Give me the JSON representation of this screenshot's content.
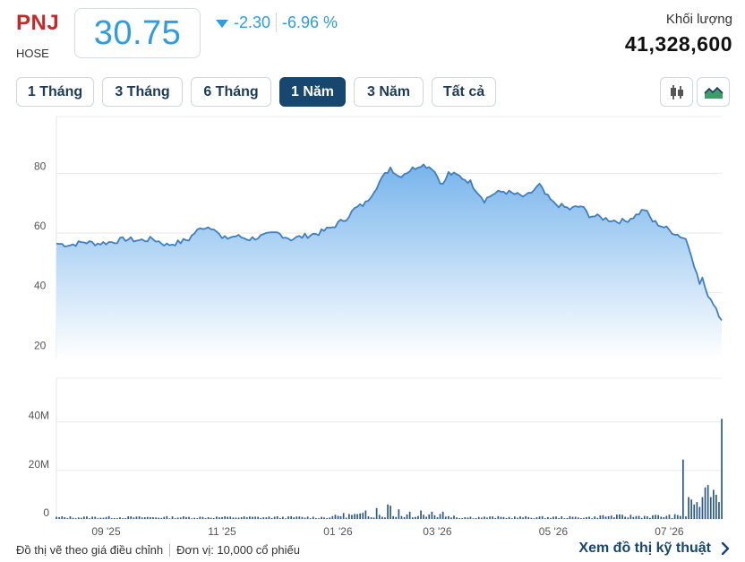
{
  "header": {
    "ticker": "PNJ",
    "exchange": "HOSE",
    "price": "30.75",
    "change": "-2.30",
    "change_pct": "-6.96 %",
    "volume_label": "Khối lượng",
    "volume_value": "41,328,600"
  },
  "ranges": [
    "1 Tháng",
    "3 Tháng",
    "6 Tháng",
    "1 Năm",
    "3 Năm",
    "Tất cả"
  ],
  "active_range": "1 Năm",
  "colors": {
    "accent": "#2f9be0",
    "line": "#3f7fbf",
    "area_top": "#7fb8ea",
    "ticker": "#c62828",
    "active_button": "#17466f",
    "volume_bar": "#2b5a86"
  },
  "icons": {
    "candlestick": "candlestick-icon",
    "mountain": "mountain-chart-icon",
    "chevron": "chevron-right-icon"
  },
  "footer": {
    "note": "Đồ thị vẽ theo giá điều chỉnh",
    "unit": "Đơn vị: 10,000 cổ phiếu",
    "link": "Xem đồ thị kỹ thuật"
  },
  "chart_data": [
    {
      "type": "area",
      "x_ticks": [
        "09 '25",
        "11 '25",
        "01 '26",
        "03 '26",
        "05 '26",
        "07 '26"
      ],
      "x_tick_index": [
        18,
        60,
        102,
        138,
        180,
        222
      ],
      "ylim": [
        18,
        99
      ],
      "y_ticks": [
        20,
        40,
        60,
        80
      ],
      "grid": true,
      "keyframes": [
        [
          0,
          56.5
        ],
        [
          5,
          56
        ],
        [
          10,
          57
        ],
        [
          15,
          56.5
        ],
        [
          20,
          57
        ],
        [
          25,
          58
        ],
        [
          30,
          57.5
        ],
        [
          35,
          58
        ],
        [
          40,
          56
        ],
        [
          45,
          57
        ],
        [
          48,
          58
        ],
        [
          50,
          60
        ],
        [
          53,
          62
        ],
        [
          57,
          62
        ],
        [
          60,
          58
        ],
        [
          65,
          59
        ],
        [
          70,
          58
        ],
        [
          75,
          59
        ],
        [
          80,
          60
        ],
        [
          85,
          58
        ],
        [
          90,
          59
        ],
        [
          95,
          60
        ],
        [
          100,
          62
        ],
        [
          105,
          65
        ],
        [
          108,
          68
        ],
        [
          112,
          70
        ],
        [
          117,
          77
        ],
        [
          121,
          82
        ],
        [
          124,
          79
        ],
        [
          128,
          81
        ],
        [
          132,
          83
        ],
        [
          136,
          82
        ],
        [
          140,
          76
        ],
        [
          142,
          80
        ],
        [
          146,
          79
        ],
        [
          150,
          77
        ],
        [
          155,
          71
        ],
        [
          158,
          73
        ],
        [
          162,
          74
        ],
        [
          166,
          73
        ],
        [
          170,
          72
        ],
        [
          175,
          76
        ],
        [
          177,
          73
        ],
        [
          180,
          70
        ],
        [
          183,
          69
        ],
        [
          186,
          68
        ],
        [
          190,
          69
        ],
        [
          193,
          66
        ],
        [
          198,
          65
        ],
        [
          203,
          64
        ],
        [
          206,
          64
        ],
        [
          210,
          66
        ],
        [
          213,
          68
        ],
        [
          216,
          64
        ],
        [
          220,
          62
        ],
        [
          224,
          60
        ],
        [
          228,
          58
        ],
        [
          230,
          53
        ],
        [
          232,
          46
        ],
        [
          233,
          43
        ],
        [
          234,
          45
        ],
        [
          235,
          41
        ],
        [
          237,
          38
        ],
        [
          239,
          35
        ],
        [
          240,
          32
        ],
        [
          241,
          30.75
        ]
      ],
      "noise_amplitude": 0.9
    },
    {
      "type": "bar",
      "ylabel_ticks": [
        "0",
        "20M",
        "40M"
      ],
      "y_tick_values": [
        0,
        20,
        40
      ],
      "ylim": [
        0,
        58
      ],
      "unit": "M",
      "baseline_millions": 0.6,
      "spikes": [
        [
          112,
          3.5
        ],
        [
          116,
          4.5
        ],
        [
          120,
          6
        ],
        [
          121,
          5.5
        ],
        [
          124,
          4
        ],
        [
          128,
          3
        ],
        [
          132,
          3.5
        ],
        [
          136,
          3
        ],
        [
          140,
          3
        ],
        [
          224,
          2
        ],
        [
          227,
          24.5
        ],
        [
          229,
          9
        ],
        [
          230,
          8
        ],
        [
          231,
          6
        ],
        [
          232,
          7
        ],
        [
          233,
          5
        ],
        [
          234,
          9
        ],
        [
          235,
          13
        ],
        [
          236,
          14
        ],
        [
          237,
          9
        ],
        [
          238,
          12
        ],
        [
          239,
          10
        ],
        [
          240,
          7
        ],
        [
          241,
          41.3
        ]
      ]
    }
  ]
}
